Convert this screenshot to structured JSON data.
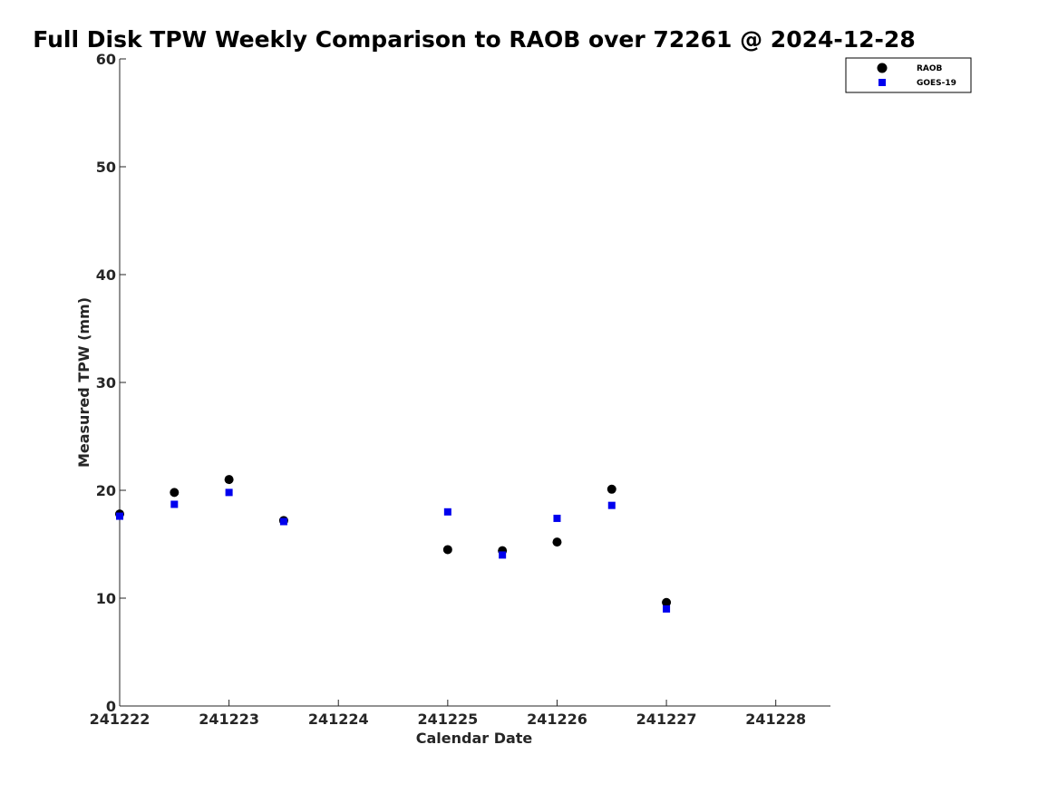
{
  "chart_data": {
    "type": "scatter",
    "title": "Full Disk TPW Weekly Comparison to RAOB over 72261 @ 2024-12-28",
    "xlabel": "Calendar Date",
    "ylabel": "Measured TPW (mm)",
    "xlim": [
      0,
      6.5
    ],
    "ylim": [
      0,
      60
    ],
    "x_ticks": [
      0,
      1,
      2,
      3,
      4,
      5,
      6
    ],
    "x_tick_labels": [
      "241222",
      "241223",
      "241224",
      "241225",
      "241226",
      "241227",
      "241228"
    ],
    "y_ticks": [
      0,
      10,
      20,
      30,
      40,
      50,
      60
    ],
    "y_tick_labels": [
      "0",
      "10",
      "20",
      "30",
      "40",
      "50",
      "60"
    ],
    "grid": false,
    "legend_position": "top-right",
    "series": [
      {
        "name": "RAOB",
        "marker": "circle",
        "color": "#000000",
        "x": [
          0,
          0.5,
          1,
          1.5,
          3,
          3.5,
          4,
          4.5,
          5
        ],
        "y": [
          17.8,
          19.8,
          21.0,
          17.2,
          14.5,
          14.4,
          15.2,
          20.1,
          9.6
        ]
      },
      {
        "name": "GOES-19",
        "marker": "square",
        "color": "#0000ee",
        "x": [
          0,
          0.5,
          1,
          1.5,
          3,
          3.5,
          4,
          4.5,
          5
        ],
        "y": [
          17.6,
          18.7,
          19.8,
          17.1,
          18.0,
          14.0,
          17.4,
          18.6,
          9.0
        ]
      }
    ]
  }
}
